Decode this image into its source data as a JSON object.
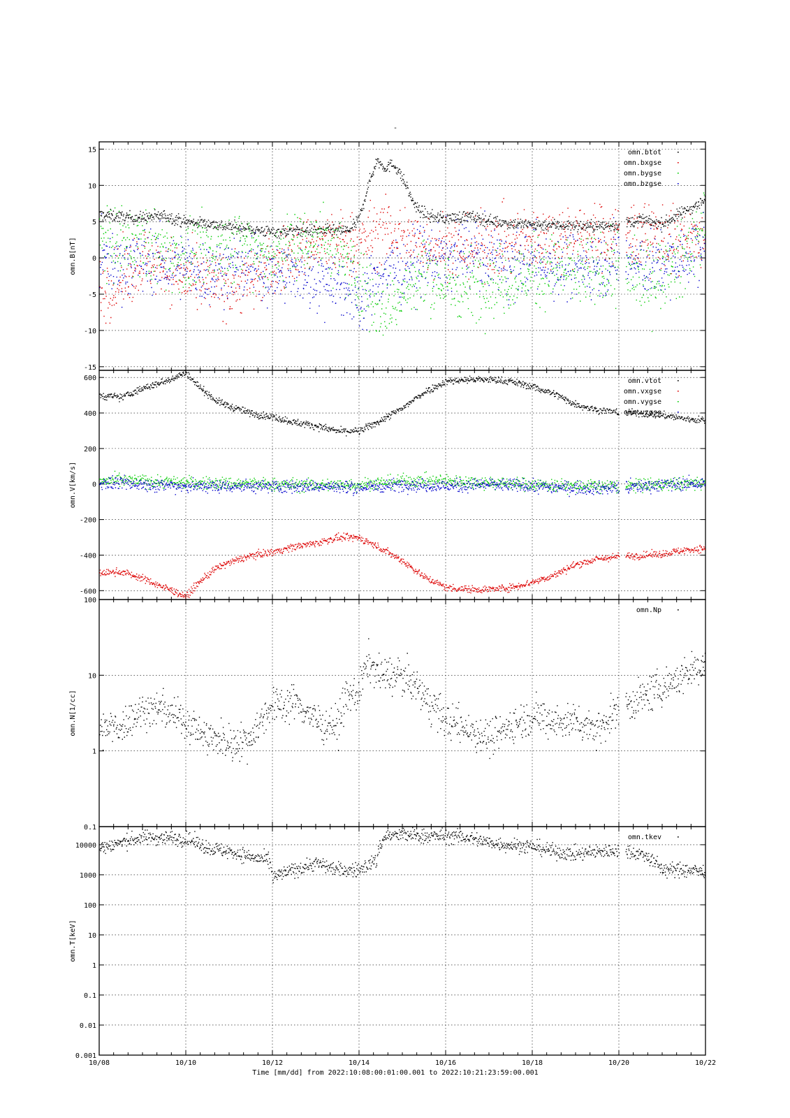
{
  "figure": {
    "title": "-",
    "x_axis_label": "Time [mm/dd]  from 2022:10:08:00:01:00.001  to  2022:10:21:23:59:00.001",
    "x_tick_labels": [
      "10/08",
      "10/10",
      "10/12",
      "10/14",
      "10/16",
      "10/18",
      "10/20",
      "10/22"
    ]
  },
  "colors": {
    "black": "#000000",
    "red": "#dd0000",
    "green": "#00cc00",
    "blue": "#0000cc"
  },
  "chart_data": [
    {
      "type": "scatter",
      "ylabel": "omn.B[nT]",
      "yscale": "linear",
      "xlim": [
        0,
        14
      ],
      "ylim": [
        -15.5,
        16
      ],
      "grid": true,
      "legend_position": "top-right",
      "y_ticks": [
        -15,
        -10,
        -5,
        0,
        5,
        10,
        15
      ],
      "y_tick_labels": [
        "-15",
        "-10",
        "-5",
        "0",
        "5",
        "10",
        "15"
      ],
      "x_unit": "days since 10/08",
      "series": [
        {
          "name": "omn.btot",
          "color": "#000000",
          "noise": 0.4,
          "x": [
            0,
            0.5,
            1,
            1.5,
            2,
            2.5,
            3,
            3.5,
            4,
            4.5,
            5,
            5.5,
            5.8,
            6,
            6.2,
            6.4,
            6.6,
            6.8,
            7,
            7.3,
            7.6,
            8,
            8.5,
            9,
            9.5,
            10,
            10.5,
            11,
            11.5,
            12,
            12.5,
            13,
            13.5,
            14
          ],
          "y": [
            6,
            5.7,
            5.6,
            5.9,
            5,
            4.8,
            4.3,
            4,
            3.6,
            3.8,
            3.9,
            3.8,
            3.9,
            5.5,
            10,
            13.5,
            12.5,
            13,
            11,
            7,
            5.8,
            5.5,
            5.8,
            5.2,
            4.8,
            4.6,
            4.6,
            4.5,
            4.4,
            4.6,
            5.3,
            4.7,
            6.5,
            8
          ]
        },
        {
          "name": "omn.bxgse",
          "color": "#dd0000",
          "noise": 2.2,
          "x": [
            0,
            0.5,
            1,
            1.5,
            2,
            2.5,
            3,
            3.5,
            4,
            4.5,
            5,
            5.5,
            6,
            6.5,
            7,
            7.5,
            8,
            8.5,
            9,
            9.5,
            10,
            10.5,
            11,
            11.5,
            12,
            12.5,
            13,
            13.5,
            14
          ],
          "y": [
            -4.5,
            -3,
            0,
            -1,
            -3,
            -3.5,
            -3.5,
            -3,
            -1,
            1,
            2,
            2,
            2,
            4,
            3,
            2,
            2,
            1,
            2,
            2,
            2.5,
            3,
            3.2,
            3,
            3.5,
            3,
            3,
            2,
            3
          ]
        },
        {
          "name": "omn.bygse",
          "color": "#00cc00",
          "noise": 2.4,
          "x": [
            0,
            0.5,
            1,
            1.5,
            2,
            2.5,
            3,
            3.5,
            4,
            4.5,
            5,
            5.5,
            6,
            6.5,
            7,
            7.5,
            8,
            8.5,
            9,
            9.5,
            10,
            10.5,
            11,
            11.5,
            12,
            12.5,
            13,
            13.5,
            14
          ],
          "y": [
            2,
            2,
            2,
            1,
            0,
            1,
            2,
            2,
            0,
            2,
            3,
            1,
            -3,
            -7,
            -5,
            -2,
            -4,
            -3.5,
            -3,
            -3,
            -2,
            -1.5,
            -2,
            -2,
            -1,
            -3,
            -2,
            0,
            5
          ]
        },
        {
          "name": "omn.bzgse",
          "color": "#0000cc",
          "noise": 2.2,
          "x": [
            0,
            0.5,
            1,
            1.5,
            2,
            2.5,
            3,
            3.5,
            4,
            4.5,
            5,
            5.5,
            6,
            6.5,
            7,
            7.5,
            8,
            8.5,
            9,
            9.5,
            10,
            10.5,
            11,
            11.5,
            12,
            12.5,
            13,
            13.5,
            14
          ],
          "y": [
            0,
            -1,
            0,
            -1,
            -1,
            -2,
            -1.5,
            -1,
            -2,
            -2,
            -2.5,
            -3,
            -6,
            -2,
            -1,
            0,
            0,
            1,
            0,
            -1,
            0,
            -1,
            -1,
            -1,
            0,
            -1,
            -1,
            0,
            2
          ]
        }
      ]
    },
    {
      "type": "scatter",
      "ylabel": "omn.V[km/s]",
      "yscale": "linear",
      "xlim": [
        0,
        14
      ],
      "ylim": [
        -650,
        640
      ],
      "grid": true,
      "legend_position": "top-right",
      "y_ticks": [
        -600,
        -400,
        -200,
        0,
        200,
        400,
        600
      ],
      "y_tick_labels": [
        "-600",
        "-400",
        "-200",
        "0",
        "200",
        "400",
        "600"
      ],
      "x_unit": "days since 10/08",
      "series": [
        {
          "name": "omn.vtot",
          "color": "#000000",
          "noise": 10,
          "x": [
            0,
            0.5,
            1,
            1.5,
            2,
            2.3,
            2.7,
            3,
            3.5,
            4,
            4.5,
            5,
            5.5,
            6,
            6.5,
            7,
            7.5,
            8,
            8.5,
            9,
            9.5,
            10,
            10.5,
            11,
            11.5,
            12,
            12.5,
            13,
            13.5,
            14
          ],
          "y": [
            500,
            490,
            540,
            580,
            630,
            550,
            470,
            440,
            400,
            380,
            350,
            330,
            300,
            300,
            360,
            430,
            520,
            580,
            590,
            590,
            580,
            550,
            510,
            450,
            420,
            405,
            400,
            390,
            370,
            360
          ]
        },
        {
          "name": "omn.vxgse",
          "color": "#dd0000",
          "noise": 10,
          "x": [
            0,
            0.5,
            1,
            1.5,
            2,
            2.3,
            2.7,
            3,
            3.5,
            4,
            4.5,
            5,
            5.5,
            6,
            6.5,
            7,
            7.5,
            8,
            8.5,
            9,
            9.5,
            10,
            10.5,
            11,
            11.5,
            12,
            12.5,
            13,
            13.5,
            14
          ],
          "y": [
            -500,
            -490,
            -530,
            -580,
            -630,
            -550,
            -470,
            -440,
            -400,
            -380,
            -350,
            -330,
            -300,
            -300,
            -360,
            -430,
            -520,
            -580,
            -590,
            -590,
            -580,
            -550,
            -510,
            -450,
            -420,
            -405,
            -400,
            -390,
            -370,
            -360
          ]
        },
        {
          "name": "omn.vygse",
          "color": "#00cc00",
          "noise": 18,
          "x": [
            0,
            1,
            2,
            3,
            4,
            5,
            6,
            7,
            8,
            9,
            10,
            11,
            12,
            13,
            14
          ],
          "y": [
            20,
            20,
            10,
            5,
            0,
            -5,
            0,
            20,
            20,
            10,
            0,
            -10,
            -10,
            0,
            10
          ]
        },
        {
          "name": "omn.vzgse",
          "color": "#0000cc",
          "noise": 18,
          "x": [
            0,
            1,
            2,
            3,
            4,
            5,
            6,
            7,
            8,
            9,
            10,
            11,
            12,
            13,
            14
          ],
          "y": [
            10,
            0,
            -10,
            -10,
            -10,
            -10,
            -20,
            0,
            -10,
            0,
            -10,
            -20,
            -20,
            0,
            5
          ]
        }
      ]
    },
    {
      "type": "scatter",
      "ylabel": "omn.N[1/cc]",
      "yscale": "log",
      "xlim": [
        0,
        14
      ],
      "ylim": [
        0.1,
        100
      ],
      "grid": true,
      "legend_position": "top-right",
      "y_ticks": [
        0.1,
        1,
        10,
        100
      ],
      "y_tick_labels": [
        "0.1",
        "1",
        "10",
        "100"
      ],
      "x_unit": "days since 10/08",
      "series": [
        {
          "name": "omn.Np",
          "color": "#000000",
          "noise": 0.12,
          "x": [
            0,
            0.5,
            1,
            1.5,
            2,
            2.5,
            3,
            3.5,
            4,
            4.5,
            5,
            5.5,
            5.7,
            6,
            6.2,
            6.5,
            7,
            7.5,
            8,
            8.5,
            9,
            9.5,
            10,
            10.5,
            11,
            11.5,
            12,
            12.5,
            13,
            13.5,
            14
          ],
          "y": [
            1.8,
            2.2,
            3.5,
            3.5,
            2.5,
            1.5,
            1.3,
            1.5,
            4,
            4.5,
            2.5,
            2.2,
            5,
            6,
            15,
            10,
            10,
            5,
            2.5,
            2,
            1.5,
            2.2,
            3,
            2.5,
            2.5,
            2,
            3.5,
            5,
            7,
            10,
            15
          ]
        }
      ]
    },
    {
      "type": "scatter",
      "ylabel": "omn.T[keV]",
      "yscale": "log",
      "xlim": [
        0,
        14
      ],
      "ylim": [
        0.001,
        40000
      ],
      "grid": true,
      "legend_position": "top-right",
      "y_ticks": [
        0.001,
        0.01,
        0.1,
        1,
        10,
        100,
        1000,
        10000
      ],
      "y_tick_labels": [
        "0.001",
        "0.01",
        "0.1",
        "1",
        "10",
        "100",
        "1000",
        "10000"
      ],
      "x_unit": "days since 10/08",
      "series": [
        {
          "name": "omn.tkev",
          "color": "#000000",
          "noise": 0.12,
          "x": [
            0,
            0.5,
            1,
            1.5,
            2,
            2.5,
            3,
            3.5,
            3.9,
            4,
            4.5,
            5,
            5.5,
            6,
            6.4,
            6.6,
            7,
            7.5,
            8,
            8.5,
            9,
            9.5,
            10,
            10.5,
            11,
            11.5,
            12,
            12.5,
            13,
            13.5,
            14
          ],
          "y": [
            8000,
            12000,
            18000,
            18000,
            16000,
            8000,
            6000,
            4000,
            3000,
            800,
            1500,
            2500,
            1500,
            1500,
            3000,
            20000,
            22000,
            20000,
            20000,
            18000,
            12000,
            10000,
            9000,
            6000,
            5000,
            6000,
            7000,
            5000,
            1500,
            1500,
            1300
          ]
        }
      ]
    }
  ]
}
